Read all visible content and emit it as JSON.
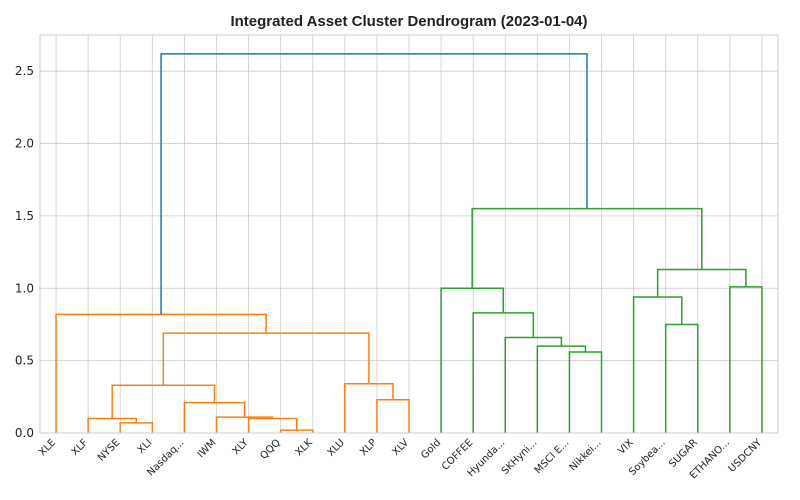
{
  "chart_data": {
    "type": "dendrogram",
    "title": "Integrated Asset Cluster Dendrogram (2023-01-04)",
    "xlabel": "",
    "ylabel": "",
    "ylim": [
      0,
      2.75
    ],
    "yticks": [
      "0.0",
      "0.5",
      "1.0",
      "1.5",
      "2.0",
      "2.5"
    ],
    "grid": true,
    "leaves": [
      "XLE",
      "XLF",
      "NYSE",
      "XLI",
      "Nasdaq...",
      "IWM",
      "XLY",
      "QQQ",
      "XLK",
      "XLU",
      "XLP",
      "XLV",
      "Gold",
      "COFFEE",
      "Hyunda...",
      "SKHyni...",
      "MSCI E...",
      "Nikkei...",
      "VIX",
      "Soybea...",
      "SUGAR",
      "ETHANO...",
      "USDCNY"
    ],
    "merges": [
      {
        "left": "XLF",
        "right": "XLI-NYSE",
        "id": "XLI-NYSE",
        "a": "NYSE",
        "b": "XLI",
        "height": 0.07
      },
      {
        "id": "c1",
        "a": "NYSE",
        "b": "XLI",
        "height": 0.07
      },
      {
        "id": "c2",
        "a": "XLF",
        "b": "c1",
        "height": 0.1
      },
      {
        "id": "c3",
        "a": "QQQ",
        "b": "XLK",
        "height": 0.02
      },
      {
        "id": "c4",
        "a": "XLY",
        "b": "c3",
        "height": 0.1
      },
      {
        "id": "c5",
        "a": "IWM",
        "b": "c4",
        "height": 0.11
      },
      {
        "id": "c6",
        "a": "Nasdaq...",
        "b": "c5",
        "height": 0.21
      },
      {
        "id": "c7",
        "a": "c2",
        "b": "c6",
        "height": 0.33
      },
      {
        "id": "c8",
        "a": "XLP",
        "b": "XLV",
        "height": 0.23
      },
      {
        "id": "c9",
        "a": "XLU",
        "b": "c8",
        "height": 0.34
      },
      {
        "id": "c10",
        "a": "c7",
        "b": "c9",
        "height": 0.69
      },
      {
        "id": "c11",
        "a": "XLE",
        "b": "c10",
        "height": 0.82
      },
      {
        "id": "c12",
        "a": "MSCI E...",
        "b": "Nikkei...",
        "height": 0.56
      },
      {
        "id": "c13",
        "a": "SKHyni...",
        "b": "c12",
        "height": 0.6
      },
      {
        "id": "c14",
        "a": "Hyunda...",
        "b": "c13",
        "height": 0.66
      },
      {
        "id": "c15",
        "a": "COFFEE",
        "b": "c14",
        "height": 0.83
      },
      {
        "id": "c16",
        "a": "Gold",
        "b": "c15",
        "height": 1.0
      },
      {
        "id": "c17",
        "a": "Soybea...",
        "b": "SUGAR",
        "height": 0.75
      },
      {
        "id": "c18",
        "a": "VIX",
        "b": "c17",
        "height": 0.94
      },
      {
        "id": "c19",
        "a": "ETHANO...",
        "b": "USDCNY",
        "height": 1.01
      },
      {
        "id": "c20",
        "a": "c18",
        "b": "c19",
        "height": 1.13
      },
      {
        "id": "c21",
        "a": "c16",
        "b": "c20",
        "height": 1.55
      },
      {
        "id": "c22",
        "a": "c11",
        "b": "c21",
        "height": 2.62
      }
    ],
    "colors": {
      "cluster_1": "#ff7f0e",
      "cluster_2": "#2ca02c",
      "link_above_threshold": "#1f77b4",
      "grid": "#cccccc",
      "frame": "#cccccc"
    },
    "cluster_1_members": [
      "XLE",
      "XLF",
      "NYSE",
      "XLI",
      "Nasdaq...",
      "IWM",
      "XLY",
      "QQQ",
      "XLK",
      "XLU",
      "XLP",
      "XLV"
    ],
    "cluster_2_members": [
      "Gold",
      "COFFEE",
      "Hyunda...",
      "SKHyni...",
      "MSCI E...",
      "Nikkei...",
      "VIX",
      "Soybea...",
      "SUGAR",
      "ETHANO...",
      "USDCNY"
    ]
  }
}
